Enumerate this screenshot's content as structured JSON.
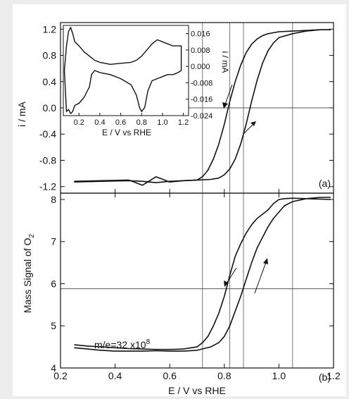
{
  "chart_data": [
    {
      "panel": "(a)",
      "type": "line",
      "xlabel": "",
      "ylabel": "i / mA",
      "xlim": [
        0.2,
        1.2
      ],
      "ylim": [
        -1.3,
        1.3
      ],
      "yticks": [
        "1.2",
        "0.8",
        "0.4",
        "0.0",
        "-0.4",
        "-0.8",
        "-1.2"
      ],
      "vertical_lines": [
        0.72,
        0.82,
        0.87,
        1.05
      ],
      "horizontal_line": 0.0,
      "series": [
        {
          "x": [
            0.25,
            0.35,
            0.45,
            0.5,
            0.55,
            0.6,
            0.65,
            0.7,
            0.72,
            0.74,
            0.76,
            0.78,
            0.8,
            0.82,
            0.84,
            0.86,
            0.88,
            0.9,
            0.92,
            0.94,
            0.96,
            1.0,
            1.05,
            1.1,
            1.15,
            1.19
          ],
          "values": [
            -1.13,
            -1.12,
            -1.11,
            -1.12,
            -1.14,
            -1.12,
            -1.11,
            -1.1,
            -1.05,
            -0.95,
            -0.78,
            -0.55,
            -0.25,
            0.1,
            0.4,
            0.65,
            0.84,
            0.97,
            1.05,
            1.1,
            1.13,
            1.16,
            1.17,
            1.18,
            1.19,
            1.19
          ]
        },
        {
          "x": [
            0.25,
            0.35,
            0.45,
            0.5,
            0.55,
            0.6,
            0.65,
            0.7,
            0.75,
            0.78,
            0.8,
            0.82,
            0.84,
            0.86,
            0.88,
            0.9,
            0.92,
            0.94,
            0.96,
            0.98,
            1.0,
            1.05,
            1.1,
            1.15,
            1.19
          ],
          "values": [
            -1.12,
            -1.11,
            -1.1,
            -1.18,
            -1.05,
            -1.13,
            -1.11,
            -1.1,
            -1.09,
            -1.07,
            -1.02,
            -0.93,
            -0.78,
            -0.55,
            -0.25,
            0.1,
            0.42,
            0.68,
            0.87,
            0.99,
            1.07,
            1.13,
            1.17,
            1.19,
            1.19
          ]
        }
      ]
    },
    {
      "panel": "inset",
      "type": "line",
      "xlabel": "E / V vs RHE",
      "ylabel": "i / mA",
      "xticks": [
        "0.2",
        "0.4",
        "0.6",
        "0.8",
        "1.0",
        "1.2"
      ],
      "xlim": [
        0.05,
        1.25
      ],
      "ylim": [
        -0.024,
        0.02
      ],
      "yticks": [
        "0.016",
        "0.008",
        "0.000",
        "-0.008",
        "-0.016",
        "-0.024"
      ],
      "series": [
        {
          "x": [
            0.06,
            0.08,
            0.1,
            0.12,
            0.14,
            0.16,
            0.2,
            0.25,
            0.3,
            0.35,
            0.4,
            0.5,
            0.6,
            0.7,
            0.75,
            0.8,
            0.85,
            0.9,
            0.95,
            1.0,
            1.05,
            1.1,
            1.15,
            1.18,
            1.18,
            1.15,
            1.1,
            1.05,
            1.0,
            0.95,
            0.9,
            0.86,
            0.83,
            0.8,
            0.78,
            0.75,
            0.7,
            0.6,
            0.5,
            0.45,
            0.4,
            0.35,
            0.32,
            0.3,
            0.28,
            0.25,
            0.2,
            0.16,
            0.14,
            0.12,
            0.1,
            0.08,
            0.06
          ],
          "values": [
            -0.002,
            0.01,
            0.017,
            0.019,
            0.016,
            0.012,
            0.01,
            0.007,
            0.005,
            0.003,
            0.002,
            0.001,
            0.0015,
            0.002,
            0.003,
            0.005,
            0.008,
            0.011,
            0.013,
            0.012,
            0.011,
            0.01,
            0.01,
            0.01,
            -0.002,
            -0.003,
            -0.004,
            -0.004,
            -0.005,
            -0.006,
            -0.007,
            -0.012,
            -0.02,
            -0.022,
            -0.02,
            -0.014,
            -0.009,
            -0.006,
            -0.004,
            -0.0035,
            -0.003,
            -0.002,
            -0.004,
            -0.01,
            -0.012,
            -0.015,
            -0.018,
            -0.019,
            -0.022,
            -0.023,
            -0.021,
            -0.022,
            -0.002
          ]
        }
      ]
    },
    {
      "panel": "(b)",
      "type": "line",
      "xlabel": "E / V vs RHE",
      "ylabel": "Mass Signal of O",
      "ylabel_subscript": "2",
      "xlim": [
        0.2,
        1.2
      ],
      "ylim": [
        4.0,
        8.15
      ],
      "xticks": [
        "0.2",
        "0.4",
        "0.6",
        "0.8",
        "1.0",
        "1.2"
      ],
      "yticks": [
        "4",
        "5",
        "6",
        "7",
        "8"
      ],
      "vertical_lines": [
        0.72,
        0.82,
        0.87,
        1.05
      ],
      "horizontal_line": 5.88,
      "annotation": "m/e=32 x10",
      "annotation_superscript": "8",
      "series": [
        {
          "x": [
            0.25,
            0.3,
            0.35,
            0.4,
            0.45,
            0.5,
            0.55,
            0.6,
            0.65,
            0.7,
            0.72,
            0.74,
            0.76,
            0.78,
            0.8,
            0.82,
            0.84,
            0.86,
            0.88,
            0.9,
            0.92,
            0.94,
            0.96,
            0.98,
            1.0,
            1.02,
            1.05,
            1.1,
            1.15,
            1.19
          ],
          "values": [
            4.55,
            4.52,
            4.5,
            4.48,
            4.46,
            4.45,
            4.44,
            4.44,
            4.45,
            4.5,
            4.6,
            4.75,
            5.0,
            5.3,
            5.7,
            6.2,
            6.65,
            6.95,
            7.2,
            7.4,
            7.55,
            7.65,
            7.75,
            7.9,
            8.0,
            8.02,
            8.03,
            8.02,
            8.01,
            8.0
          ]
        },
        {
          "x": [
            0.25,
            0.3,
            0.35,
            0.4,
            0.45,
            0.5,
            0.55,
            0.6,
            0.65,
            0.7,
            0.75,
            0.78,
            0.8,
            0.82,
            0.84,
            0.86,
            0.88,
            0.9,
            0.92,
            0.94,
            0.96,
            0.98,
            1.0,
            1.02,
            1.05,
            1.1,
            1.15,
            1.19
          ],
          "values": [
            4.48,
            4.45,
            4.42,
            4.4,
            4.4,
            4.4,
            4.41,
            4.4,
            4.4,
            4.42,
            4.5,
            4.6,
            4.75,
            5.0,
            5.35,
            5.7,
            6.1,
            6.5,
            6.85,
            7.1,
            7.35,
            7.55,
            7.7,
            7.85,
            7.95,
            8.02,
            8.05,
            8.05
          ]
        }
      ]
    }
  ]
}
